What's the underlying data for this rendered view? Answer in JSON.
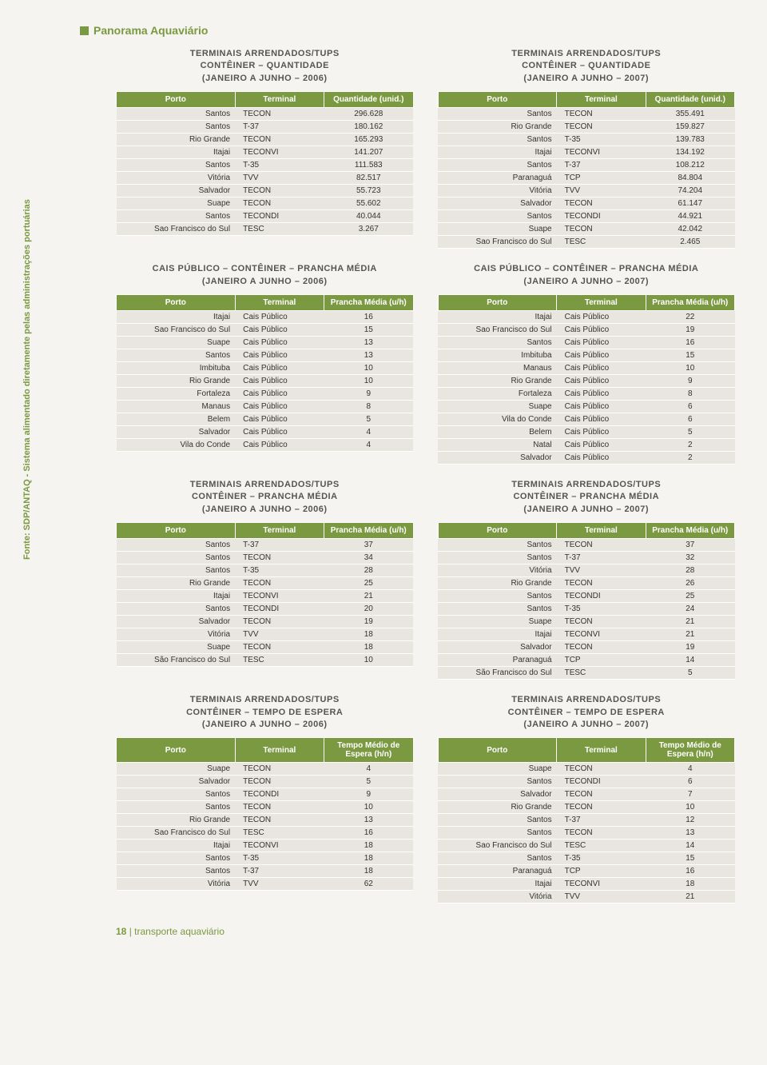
{
  "page": {
    "title": "Panorama Aquaviário",
    "vertical_source": "Fonte: SDP/ANTAQ - Sistema alimentado diretamente pelas administrações portuárias",
    "footer_page": "18",
    "footer_text": "| transporte aquaviário"
  },
  "sections": [
    {
      "left": {
        "title": "TERMINAIS ARRENDADOS/TUPS\nCONTÊINER – QUANTIDADE\n(JANEIRO A JUNHO – 2006)",
        "headers": [
          "Porto",
          "Terminal",
          "Quantidade (unid.)"
        ],
        "rows": [
          [
            "Santos",
            "TECON",
            "296.628"
          ],
          [
            "Santos",
            "T-37",
            "180.162"
          ],
          [
            "Rio Grande",
            "TECON",
            "165.293"
          ],
          [
            "Itajai",
            "TECONVI",
            "141.207"
          ],
          [
            "Santos",
            "T-35",
            "111.583"
          ],
          [
            "Vitória",
            "TVV",
            "82.517"
          ],
          [
            "Salvador",
            "TECON",
            "55.723"
          ],
          [
            "Suape",
            "TECON",
            "55.602"
          ],
          [
            "Santos",
            "TECONDI",
            "40.044"
          ],
          [
            "Sao Francisco do Sul",
            "TESC",
            "3.267"
          ]
        ]
      },
      "right": {
        "title": "TERMINAIS ARRENDADOS/TUPS\nCONTÊINER – QUANTIDADE\n(JANEIRO A JUNHO – 2007)",
        "headers": [
          "Porto",
          "Terminal",
          "Quantidade (unid.)"
        ],
        "rows": [
          [
            "Santos",
            "TECON",
            "355.491"
          ],
          [
            "Rio Grande",
            "TECON",
            "159.827"
          ],
          [
            "Santos",
            "T-35",
            "139.783"
          ],
          [
            "Itajai",
            "TECONVI",
            "134.192"
          ],
          [
            "Santos",
            "T-37",
            "108.212"
          ],
          [
            "Paranaguá",
            "TCP",
            "84.804"
          ],
          [
            "Vitória",
            "TVV",
            "74.204"
          ],
          [
            "Salvador",
            "TECON",
            "61.147"
          ],
          [
            "Santos",
            "TECONDI",
            "44.921"
          ],
          [
            "Suape",
            "TECON",
            "42.042"
          ],
          [
            "Sao Francisco do Sul",
            "TESC",
            "2.465"
          ]
        ]
      }
    },
    {
      "left": {
        "title": "CAIS PÚBLICO – CONTÊINER – PRANCHA MÉDIA\n(JANEIRO A JUNHO – 2006)",
        "headers": [
          "Porto",
          "Terminal",
          "Prancha Média (u/h)"
        ],
        "rows": [
          [
            "Itajai",
            "Cais Público",
            "16"
          ],
          [
            "Sao Francisco do Sul",
            "Cais Público",
            "15"
          ],
          [
            "Suape",
            "Cais Público",
            "13"
          ],
          [
            "Santos",
            "Cais Público",
            "13"
          ],
          [
            "Imbituba",
            "Cais Público",
            "10"
          ],
          [
            "Rio Grande",
            "Cais Público",
            "10"
          ],
          [
            "Fortaleza",
            "Cais Público",
            "9"
          ],
          [
            "Manaus",
            "Cais Público",
            "8"
          ],
          [
            "Belem",
            "Cais Público",
            "5"
          ],
          [
            "Salvador",
            "Cais Público",
            "4"
          ],
          [
            "Vila do Conde",
            "Cais Público",
            "4"
          ]
        ]
      },
      "right": {
        "title": "CAIS PÚBLICO – CONTÊINER – PRANCHA MÉDIA\n(JANEIRO A JUNHO – 2007)",
        "headers": [
          "Porto",
          "Terminal",
          "Prancha Média (u/h)"
        ],
        "rows": [
          [
            "Itajai",
            "Cais Público",
            "22"
          ],
          [
            "Sao Francisco do Sul",
            "Cais Público",
            "19"
          ],
          [
            "Santos",
            "Cais Público",
            "16"
          ],
          [
            "Imbituba",
            "Cais Público",
            "15"
          ],
          [
            "Manaus",
            "Cais Público",
            "10"
          ],
          [
            "Rio Grande",
            "Cais Público",
            "9"
          ],
          [
            "Fortaleza",
            "Cais Público",
            "8"
          ],
          [
            "Suape",
            "Cais Público",
            "6"
          ],
          [
            "Vila do Conde",
            "Cais Público",
            "6"
          ],
          [
            "Belem",
            "Cais Público",
            "5"
          ],
          [
            "Natal",
            "Cais Público",
            "2"
          ],
          [
            "Salvador",
            "Cais Público",
            "2"
          ]
        ]
      }
    },
    {
      "left": {
        "title": "TERMINAIS ARRENDADOS/TUPS\nCONTÊINER – PRANCHA MÉDIA\n(JANEIRO A JUNHO – 2006)",
        "headers": [
          "Porto",
          "Terminal",
          "Prancha Média (u/h)"
        ],
        "rows": [
          [
            "Santos",
            "T-37",
            "37"
          ],
          [
            "Santos",
            "TECON",
            "34"
          ],
          [
            "Santos",
            "T-35",
            "28"
          ],
          [
            "Rio Grande",
            "TECON",
            "25"
          ],
          [
            "Itajai",
            "TECONVI",
            "21"
          ],
          [
            "Santos",
            "TECONDI",
            "20"
          ],
          [
            "Salvador",
            "TECON",
            "19"
          ],
          [
            "Vitória",
            "TVV",
            "18"
          ],
          [
            "Suape",
            "TECON",
            "18"
          ],
          [
            "São Francisco do Sul",
            "TESC",
            "10"
          ]
        ]
      },
      "right": {
        "title": "TERMINAIS ARRENDADOS/TUPS\nCONTÊINER – PRANCHA MÉDIA\n(JANEIRO A JUNHO – 2007)",
        "headers": [
          "Porto",
          "Terminal",
          "Prancha Média (u/h)"
        ],
        "rows": [
          [
            "Santos",
            "TECON",
            "37"
          ],
          [
            "Santos",
            "T-37",
            "32"
          ],
          [
            "Vitória",
            "TVV",
            "28"
          ],
          [
            "Rio Grande",
            "TECON",
            "26"
          ],
          [
            "Santos",
            "TECONDI",
            "25"
          ],
          [
            "Santos",
            "T-35",
            "24"
          ],
          [
            "Suape",
            "TECON",
            "21"
          ],
          [
            "Itajai",
            "TECONVI",
            "21"
          ],
          [
            "Salvador",
            "TECON",
            "19"
          ],
          [
            "Paranaguá",
            "TCP",
            "14"
          ],
          [
            "São Francisco do Sul",
            "TESC",
            "5"
          ]
        ]
      }
    },
    {
      "left": {
        "title": "TERMINAIS ARRENDADOS/TUPS\nCONTÊINER – TEMPO DE ESPERA\n(JANEIRO A JUNHO – 2006)",
        "headers": [
          "Porto",
          "Terminal",
          "Tempo Médio de Espera (h/n)"
        ],
        "rows": [
          [
            "Suape",
            "TECON",
            "4"
          ],
          [
            "Salvador",
            "TECON",
            "5"
          ],
          [
            "Santos",
            "TECONDI",
            "9"
          ],
          [
            "Santos",
            "TECON",
            "10"
          ],
          [
            "Rio Grande",
            "TECON",
            "13"
          ],
          [
            "Sao Francisco do Sul",
            "TESC",
            "16"
          ],
          [
            "Itajai",
            "TECONVI",
            "18"
          ],
          [
            "Santos",
            "T-35",
            "18"
          ],
          [
            "Santos",
            "T-37",
            "18"
          ],
          [
            "Vitória",
            "TVV",
            "62"
          ]
        ]
      },
      "right": {
        "title": "TERMINAIS ARRENDADOS/TUPS\nCONTÊINER – TEMPO DE ESPERA\n(JANEIRO A JUNHO – 2007)",
        "headers": [
          "Porto",
          "Terminal",
          "Tempo Médio de Espera (h/n)"
        ],
        "rows": [
          [
            "Suape",
            "TECON",
            "4"
          ],
          [
            "Santos",
            "TECONDI",
            "6"
          ],
          [
            "Salvador",
            "TECON",
            "7"
          ],
          [
            "Rio Grande",
            "TECON",
            "10"
          ],
          [
            "Santos",
            "T-37",
            "12"
          ],
          [
            "Santos",
            "TECON",
            "13"
          ],
          [
            "Sao Francisco do Sul",
            "TESC",
            "14"
          ],
          [
            "Santos",
            "T-35",
            "15"
          ],
          [
            "Paranaguá",
            "TCP",
            "16"
          ],
          [
            "Itajai",
            "TECONVI",
            "18"
          ],
          [
            "Vitória",
            "TVV",
            "21"
          ]
        ]
      }
    }
  ]
}
